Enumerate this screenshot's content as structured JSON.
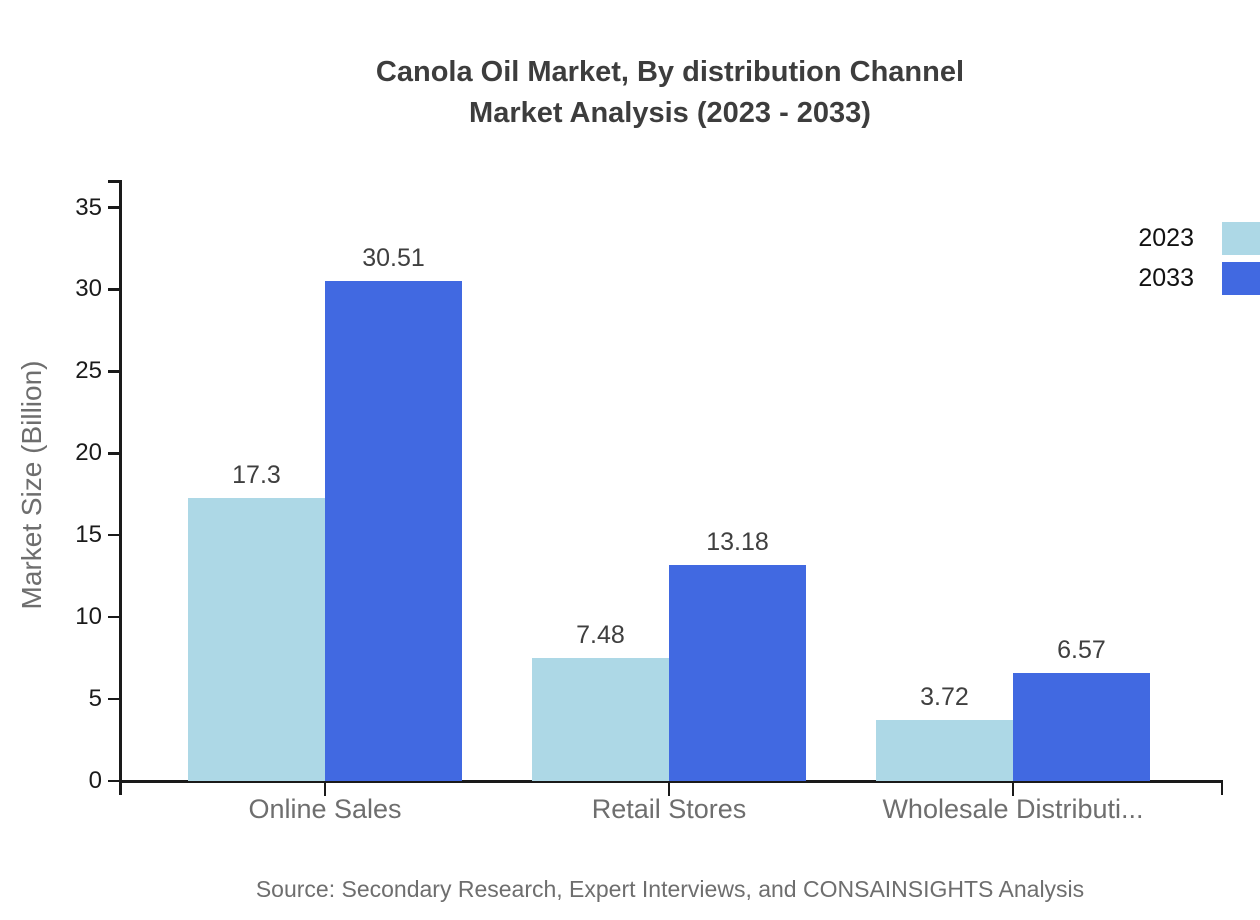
{
  "title": {
    "line1": "Canola Oil Market, By distribution Channel",
    "line2": "Market Analysis (2023 - 2033)"
  },
  "source_note": "Source: Secondary Research, Expert Interviews, and CONSAINSIGHTS Analysis",
  "chart_data": {
    "type": "bar",
    "title": "Canola Oil Market, By distribution Channel Market Analysis (2023 - 2033)",
    "categories": [
      "Online Sales",
      "Retail Stores",
      "Wholesale Distributi..."
    ],
    "series": [
      {
        "name": "2023",
        "color": "#ADD8E6",
        "values": [
          17.3,
          7.48,
          3.72
        ]
      },
      {
        "name": "2033",
        "color": "#4169E1",
        "values": [
          30.51,
          13.18,
          6.57
        ]
      }
    ],
    "xlabel": "",
    "ylabel": "Market Size (Billion)",
    "ylim": [
      0,
      35
    ],
    "yticks": [
      0,
      5,
      10,
      15,
      20,
      25,
      30,
      35
    ],
    "grid": false,
    "legend_position": "top-right",
    "value_labels_shown": true
  },
  "colors": {
    "series_2023": "#ADD8E6",
    "series_2033": "#4169E1",
    "axis": "#1a1a1a",
    "title_text": "#3d3d3d",
    "category_text": "#6e6e6e",
    "source_text": "#6e6e6e"
  }
}
